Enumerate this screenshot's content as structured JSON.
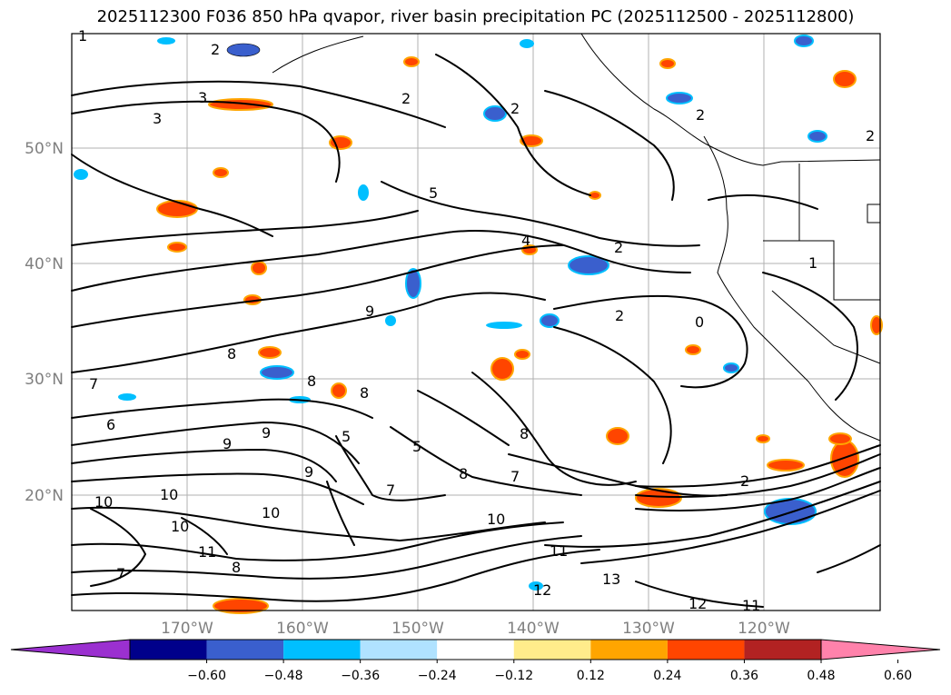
{
  "title": "2025112300 F036 850 hPa qvapor, river basin precipitation PC (2025112500 - 2025112800)",
  "lat_labels": [
    "50°N",
    "40°N",
    "30°N",
    "20°N"
  ],
  "lon_labels": [
    "170°W",
    "160°W",
    "150°W",
    "140°W",
    "130°W",
    "120°W"
  ],
  "colorbar": {
    "ticks": [
      "−0.60",
      "−0.48",
      "−0.36",
      "−0.24",
      "−0.12",
      "0.12",
      "0.24",
      "0.36",
      "0.48",
      "0.60"
    ],
    "colors": [
      "#9b30d0",
      "#00008b",
      "#3a5fcd",
      "#00bfff",
      "#b0e2ff",
      "#ffffff",
      "#ffec8b",
      "#ffa500",
      "#ff4500",
      "#b22222",
      "#ff82ab"
    ]
  },
  "contour_labels": [
    "1",
    "2",
    "2",
    "2",
    "3",
    "3",
    "2",
    "5",
    "4",
    "2",
    "2",
    "2",
    "0",
    "1",
    "9",
    "8",
    "8",
    "8",
    "7",
    "6",
    "5",
    "9",
    "5",
    "7",
    "8",
    "10",
    "10",
    "10",
    "10",
    "11",
    "10",
    "9",
    "8",
    "7",
    "11",
    "12",
    "13",
    "12",
    "11",
    "2",
    "8",
    "7",
    "9"
  ]
}
